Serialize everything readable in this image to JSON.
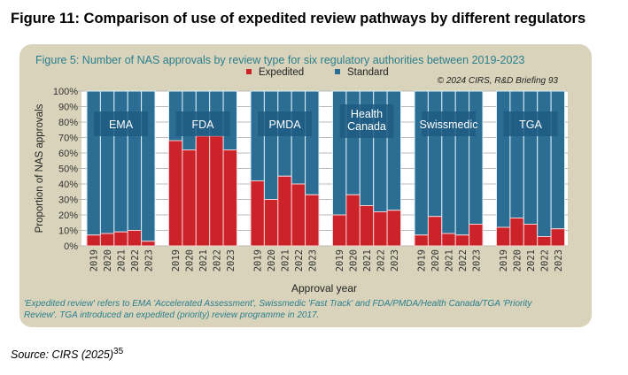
{
  "heading": "Figure 11: Comparison of use of expedited review pathways by different regulators",
  "source": {
    "text": "Source: CIRS (2025)",
    "ref": "35"
  },
  "colors": {
    "expedited": "#cc2229",
    "standard": "#2c6d94",
    "label_box": "#1e5c84",
    "panel": "#d8d3ba",
    "teal_text": "#2a7f8e"
  },
  "chart_data": {
    "type": "bar",
    "stacked": true,
    "title": "Figure 5: Number of NAS approvals by review type for six regulatory authorities between 2019-2023",
    "copyright": "© 2024 CIRS, R&D Briefing 93",
    "xlabel": "Approval year",
    "ylabel": "Proportion of NAS approvals",
    "ylim": [
      0,
      100
    ],
    "yticks": [
      "0%",
      "10%",
      "20%",
      "30%",
      "40%",
      "50%",
      "60%",
      "70%",
      "80%",
      "90%",
      "100%"
    ],
    "legend": {
      "position": "top-center",
      "entries": [
        "Expedited",
        "Standard"
      ]
    },
    "categories": [
      "2019",
      "2020",
      "2021",
      "2022",
      "2023"
    ],
    "groups": [
      {
        "name": "EMA",
        "expedited": [
          7,
          8,
          9,
          10,
          3
        ]
      },
      {
        "name": "FDA",
        "expedited": [
          68,
          62,
          71,
          71,
          62
        ]
      },
      {
        "name": "PMDA",
        "expedited": [
          42,
          30,
          45,
          40,
          33
        ]
      },
      {
        "name": "Health Canada",
        "label_lines": [
          "Health",
          "Canada"
        ],
        "expedited": [
          20,
          33,
          26,
          22,
          23
        ]
      },
      {
        "name": "Swissmedic",
        "expedited": [
          7,
          19,
          8,
          7,
          14
        ]
      },
      {
        "name": "TGA",
        "expedited": [
          12,
          18,
          14,
          6,
          11
        ]
      }
    ],
    "footnote": [
      "'Expedited review' refers to EMA 'Accelerated Assessment', Swissmedic 'Fast Track' and FDA/PMDA/Health Canada/TGA 'Priority",
      "Review'. TGA introduced an expedited (priority) review programme in 2017."
    ]
  }
}
